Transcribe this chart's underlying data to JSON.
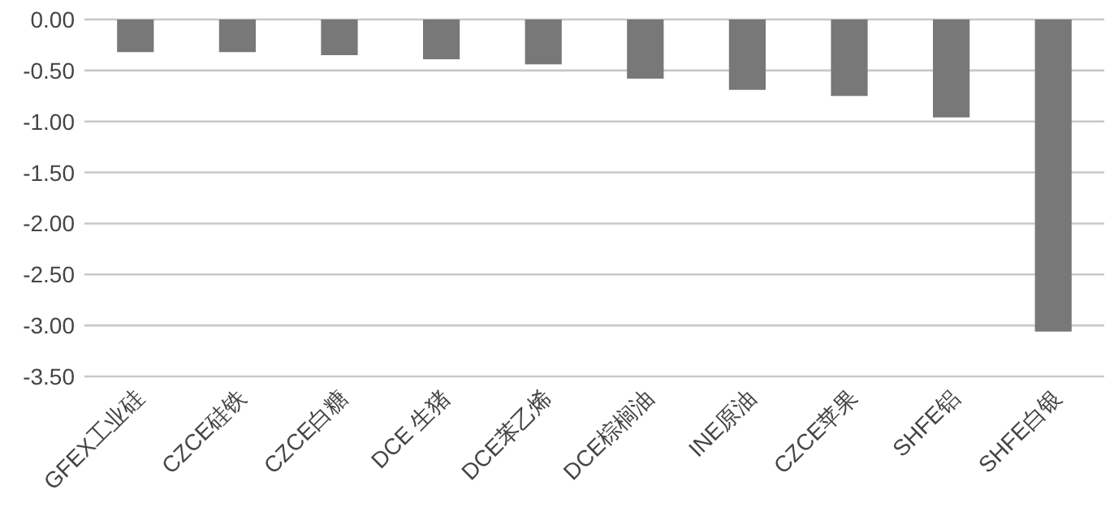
{
  "chart_data": {
    "type": "bar",
    "categories": [
      "GFEX工业硅",
      "CZCE硅铁",
      "CZCE白糖",
      "DCE 生猪",
      "DCE苯乙烯",
      "DCE棕榈油",
      "INE原油",
      "CZCE苹果",
      "SHFE铝",
      "SHFE白银"
    ],
    "values": [
      -0.32,
      -0.32,
      -0.35,
      -0.39,
      -0.44,
      -0.58,
      -0.69,
      -0.75,
      -0.96,
      -3.06
    ],
    "color": "#787878",
    "ylim": [
      -3.5,
      0
    ],
    "yticks": [
      {
        "value": 0,
        "label": "0.00"
      },
      {
        "value": -0.5,
        "label": "-0.50"
      },
      {
        "value": -1,
        "label": "-1.00"
      },
      {
        "value": -1.5,
        "label": "-1.50"
      },
      {
        "value": -2,
        "label": "-2.00"
      },
      {
        "value": -2.5,
        "label": "-2.50"
      },
      {
        "value": -3,
        "label": "-3.00"
      },
      {
        "value": -3.5,
        "label": "-3.50"
      }
    ],
    "grid": "y"
  }
}
